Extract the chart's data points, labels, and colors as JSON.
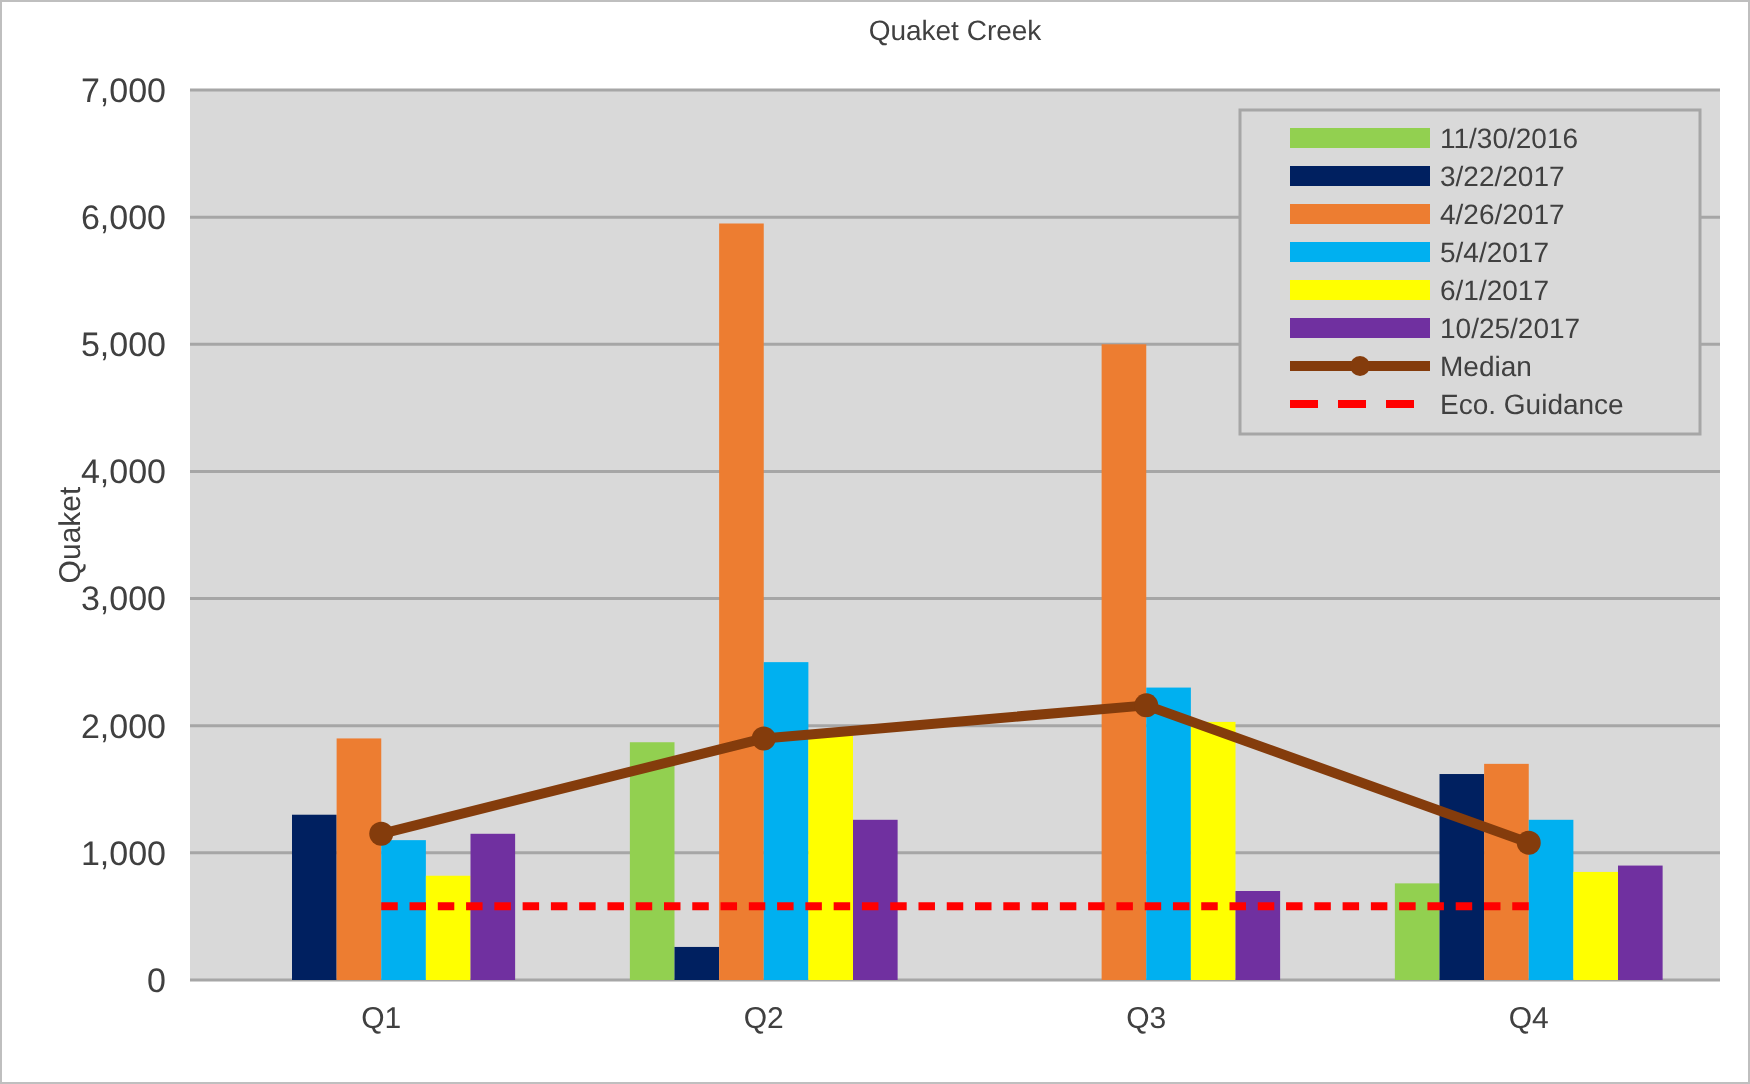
{
  "chart_data": {
    "type": "bar",
    "title": "Quaket Creek",
    "ylabel": "Quaket",
    "categories": [
      "Q1",
      "Q2",
      "Q3",
      "Q4"
    ],
    "series": [
      {
        "name": "11/30/2016",
        "color": "#92d050",
        "values": [
          null,
          1870,
          null,
          760
        ]
      },
      {
        "name": "3/22/2017",
        "color": "#002060",
        "values": [
          1300,
          260,
          null,
          1620
        ]
      },
      {
        "name": "4/26/2017",
        "color": "#ed7d31",
        "values": [
          1900,
          5950,
          5000,
          1700
        ]
      },
      {
        "name": "5/4/2017",
        "color": "#00b0f0",
        "values": [
          1100,
          2500,
          2300,
          1260
        ]
      },
      {
        "name": "6/1/2017",
        "color": "#ffff00",
        "values": [
          820,
          1920,
          2030,
          850
        ]
      },
      {
        "name": "10/25/2017",
        "color": "#7030a0",
        "values": [
          1150,
          1260,
          700,
          900
        ]
      },
      {
        "name": "Median",
        "type": "line",
        "color": "#843c0c",
        "marker": "circle",
        "line_style": "solid",
        "values": [
          1150,
          1900,
          2160,
          1080
        ]
      },
      {
        "name": "Eco. Guidance",
        "type": "line",
        "color": "#ff0000",
        "marker": "none",
        "line_style": "dashed",
        "values": [
          580,
          580,
          580,
          580
        ]
      }
    ],
    "ylim": [
      0,
      7000
    ],
    "yticks": [
      {
        "value": 0,
        "label": "0"
      },
      {
        "value": 1000,
        "label": "1,000"
      },
      {
        "value": 2000,
        "label": "2,000"
      },
      {
        "value": 3000,
        "label": "3,000"
      },
      {
        "value": 4000,
        "label": "4,000"
      },
      {
        "value": 5000,
        "label": "5,000"
      },
      {
        "value": 6000,
        "label": "6,000"
      },
      {
        "value": 7000,
        "label": "7,000"
      }
    ],
    "grid": "y",
    "legend": "top right"
  }
}
